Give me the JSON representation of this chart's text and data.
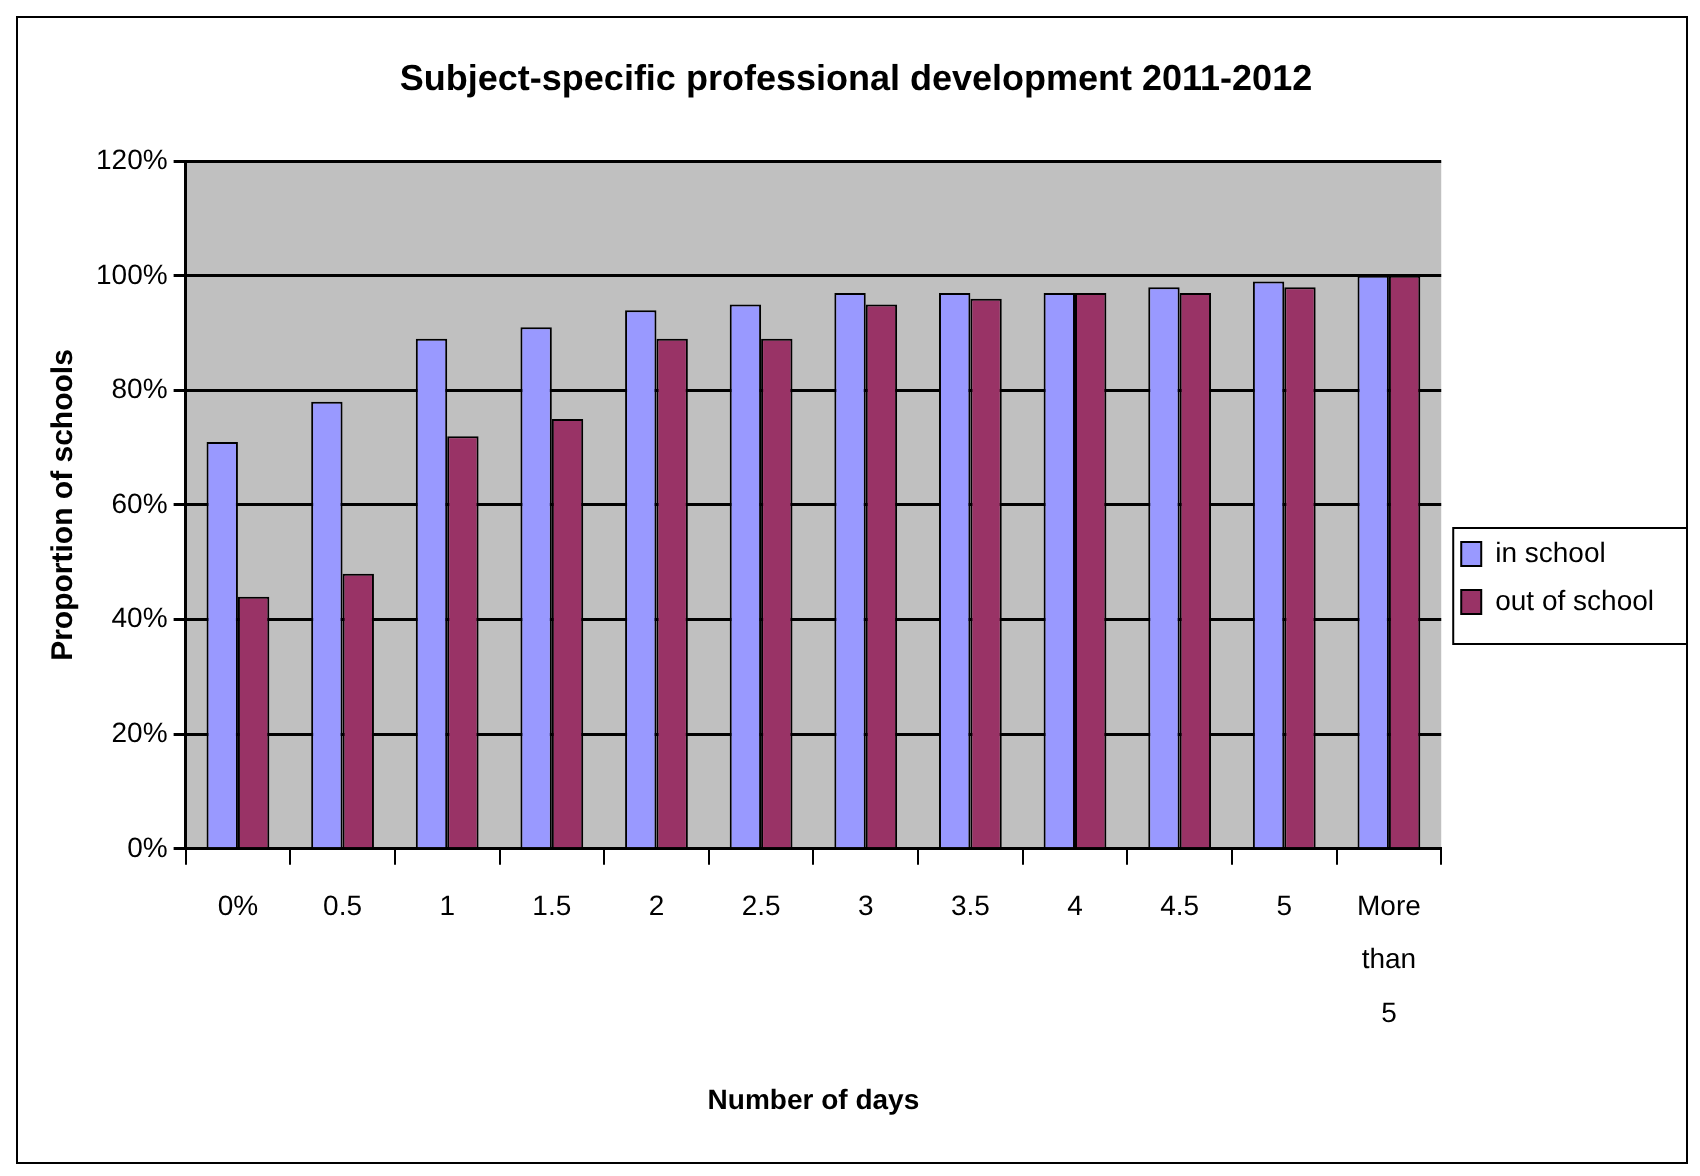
{
  "chart_data": {
    "type": "bar",
    "title": "Subject-specific professional development 2011-2012",
    "xlabel": "Number of days",
    "ylabel": "Proportion of schools",
    "categories": [
      "0%",
      "0.5",
      "1",
      "1.5",
      "2",
      "2.5",
      "3",
      "3.5",
      "4",
      "4.5",
      "5",
      "More than 5"
    ],
    "series": [
      {
        "name": "in school",
        "color": "#9999ff",
        "values": [
          71,
          78,
          89,
          91,
          94,
          95,
          97,
          97,
          97,
          98,
          99,
          100
        ]
      },
      {
        "name": "out of school",
        "color": "#993366",
        "values": [
          44,
          48,
          72,
          75,
          89,
          89,
          95,
          96,
          97,
          97,
          98,
          100
        ]
      }
    ],
    "ylim": [
      0,
      120
    ],
    "yticks": [
      {
        "value": 0,
        "label": "0%"
      },
      {
        "value": 20,
        "label": "20%"
      },
      {
        "value": 40,
        "label": "40%"
      },
      {
        "value": 60,
        "label": "60%"
      },
      {
        "value": 80,
        "label": "80%"
      },
      {
        "value": 100,
        "label": "100%"
      },
      {
        "value": 120,
        "label": "120%"
      }
    ],
    "grid": "y",
    "legend": "right"
  }
}
